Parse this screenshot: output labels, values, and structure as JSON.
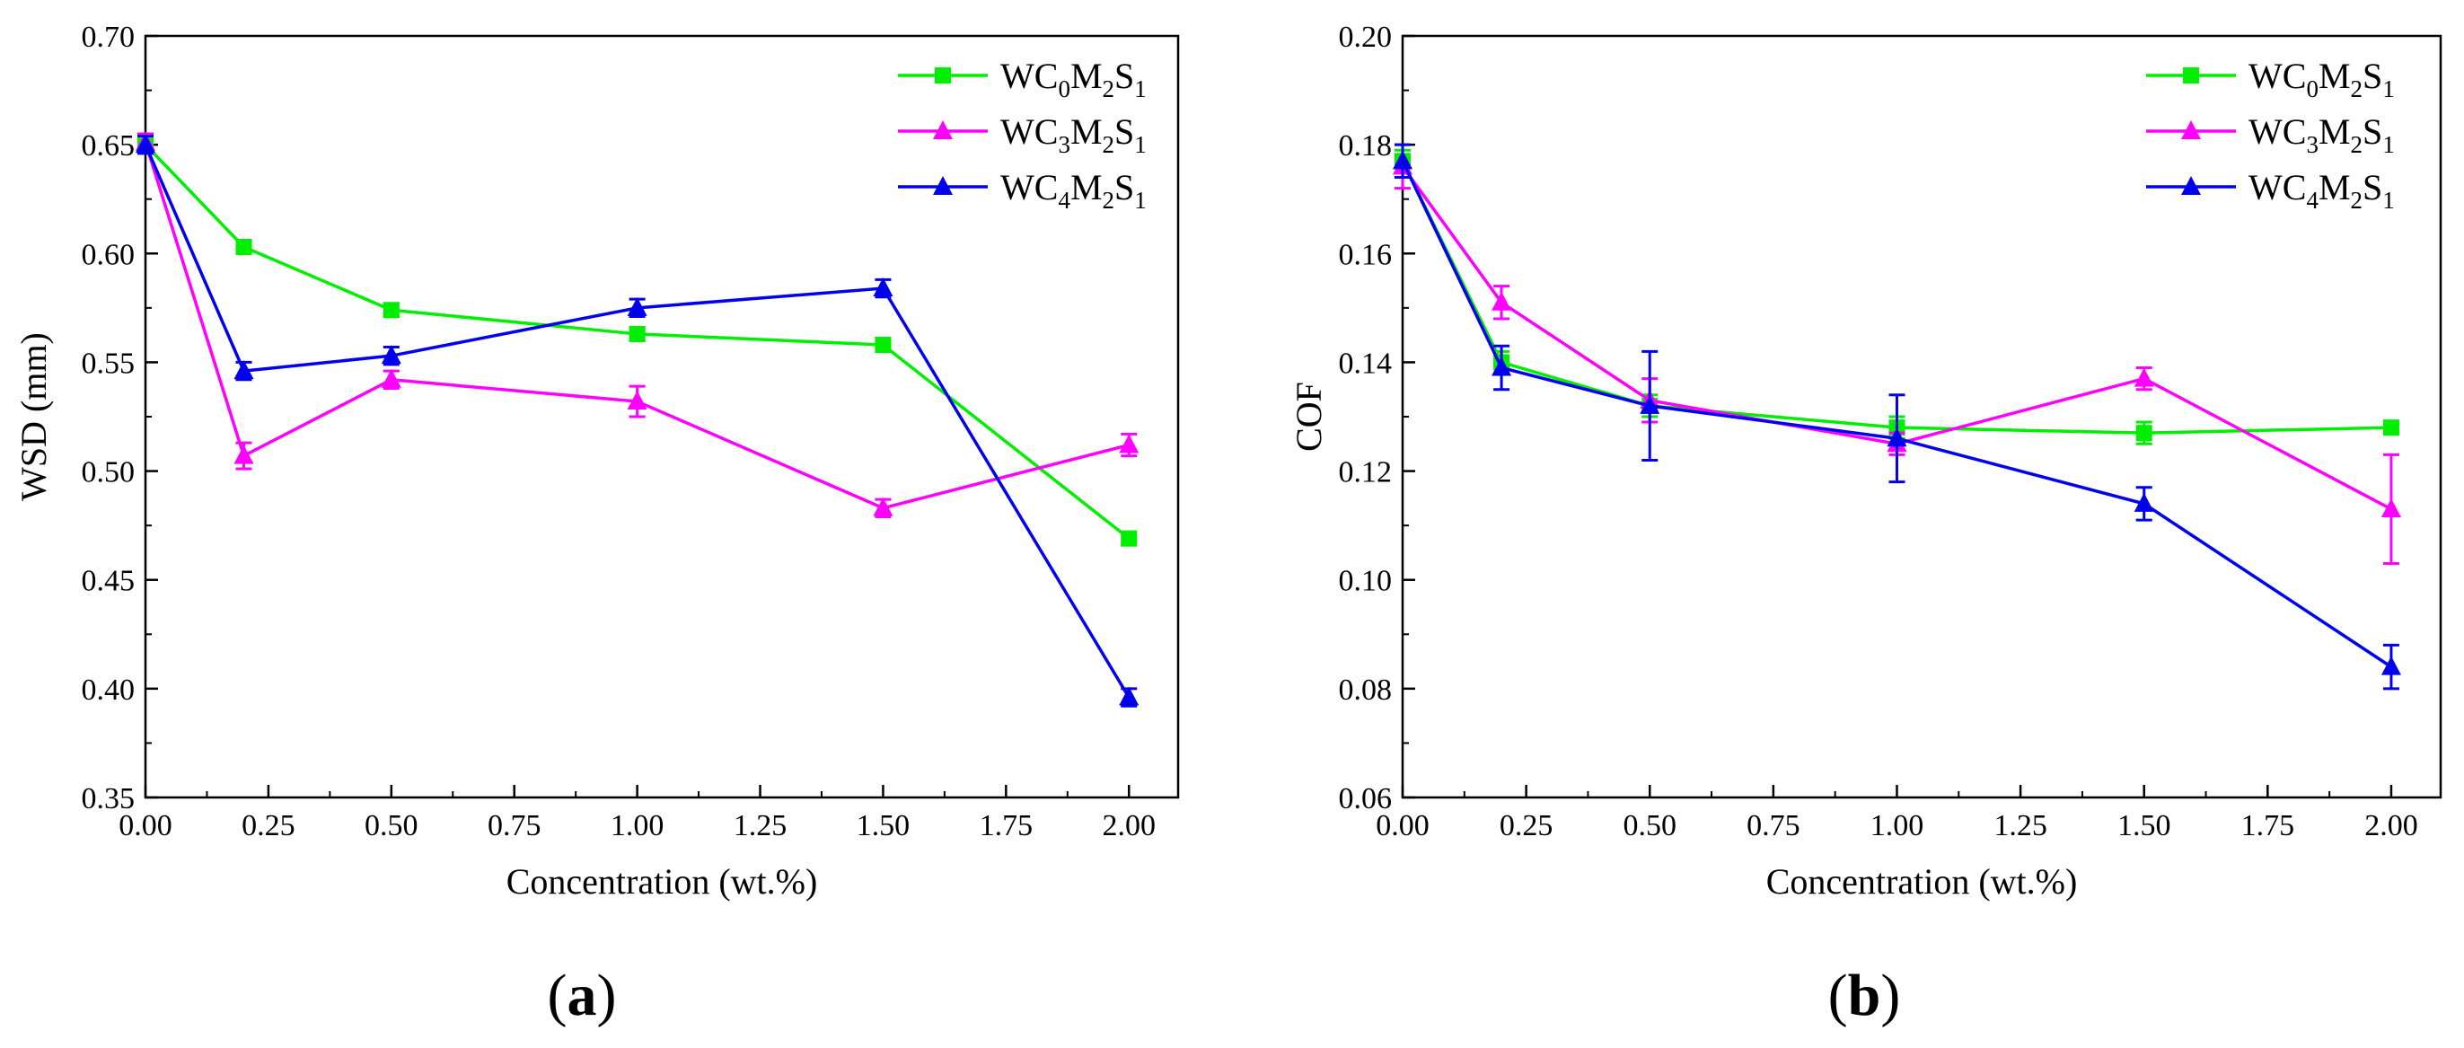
{
  "chart_data": [
    {
      "panel": "(a)",
      "panel_letter": "a",
      "type": "line",
      "title": "",
      "xlabel": "Concentration (wt.%)",
      "ylabel": "WSD (mm)",
      "xlim": [
        0,
        2.1
      ],
      "ylim": [
        0.35,
        0.7
      ],
      "xticks": [
        0.0,
        0.25,
        0.5,
        0.75,
        1.0,
        1.25,
        1.5,
        1.75,
        2.0
      ],
      "xtick_labels": [
        "0.00",
        "0.25",
        "0.50",
        "0.75",
        "1.00",
        "1.25",
        "1.50",
        "1.75",
        "2.00"
      ],
      "yticks": [
        0.35,
        0.4,
        0.45,
        0.5,
        0.55,
        0.6,
        0.65,
        0.7
      ],
      "ytick_labels": [
        "0.35",
        "0.40",
        "0.45",
        "0.50",
        "0.55",
        "0.60",
        "0.65",
        "0.70"
      ],
      "legend_position": "top-right",
      "x": [
        0,
        0.2,
        0.5,
        1.0,
        1.5,
        2.0
      ],
      "series": [
        {
          "name": "WC0M2S1",
          "label_parts": [
            "WC",
            "0",
            "M",
            "2",
            "S",
            "1"
          ],
          "color": "#00ee00",
          "marker": "square",
          "values": [
            0.65,
            0.603,
            0.574,
            0.563,
            0.558,
            0.469
          ],
          "errors": [
            0.003,
            0.003,
            0.003,
            0.003,
            0.003,
            0.003
          ]
        },
        {
          "name": "WC3M2S1",
          "label_parts": [
            "WC",
            "3",
            "M",
            "2",
            "S",
            "1"
          ],
          "color": "#ff00ff",
          "marker": "triangle",
          "values": [
            0.651,
            0.507,
            0.542,
            0.532,
            0.483,
            0.512
          ],
          "errors": [
            0.004,
            0.006,
            0.004,
            0.007,
            0.004,
            0.005
          ]
        },
        {
          "name": "WC4M2S1",
          "label_parts": [
            "WC",
            "4",
            "M",
            "2",
            "S",
            "1"
          ],
          "color": "#0000ee",
          "marker": "triangle",
          "values": [
            0.65,
            0.546,
            0.553,
            0.575,
            0.584,
            0.396
          ],
          "errors": [
            0.004,
            0.004,
            0.004,
            0.004,
            0.004,
            0.004
          ]
        }
      ]
    },
    {
      "panel": "(b)",
      "panel_letter": "b",
      "type": "line",
      "title": "",
      "xlabel": "Concentration (wt.%)",
      "ylabel": "COF",
      "xlim": [
        0,
        2.1
      ],
      "ylim": [
        0.06,
        0.2
      ],
      "xticks": [
        0.0,
        0.25,
        0.5,
        0.75,
        1.0,
        1.25,
        1.5,
        1.75,
        2.0
      ],
      "xtick_labels": [
        "0.00",
        "0.25",
        "0.50",
        "0.75",
        "1.00",
        "1.25",
        "1.50",
        "1.75",
        "2.00"
      ],
      "yticks": [
        0.06,
        0.08,
        0.1,
        0.12,
        0.14,
        0.16,
        0.18,
        0.2
      ],
      "ytick_labels": [
        "0.06",
        "0.08",
        "0.10",
        "0.12",
        "0.14",
        "0.16",
        "0.18",
        "0.20"
      ],
      "legend_position": "top-right",
      "x": [
        0,
        0.2,
        0.5,
        1.0,
        1.5,
        2.0
      ],
      "series": [
        {
          "name": "WC0M2S1",
          "label_parts": [
            "WC",
            "0",
            "M",
            "2",
            "S",
            "1"
          ],
          "color": "#00ee00",
          "marker": "square",
          "values": [
            0.177,
            0.14,
            0.132,
            0.128,
            0.127,
            0.128
          ],
          "errors": [
            0.002,
            0.002,
            0.002,
            0.002,
            0.002,
            0.001
          ]
        },
        {
          "name": "WC3M2S1",
          "label_parts": [
            "WC",
            "3",
            "M",
            "2",
            "S",
            "1"
          ],
          "color": "#ff00ff",
          "marker": "triangle",
          "values": [
            0.176,
            0.151,
            0.133,
            0.125,
            0.137,
            0.113
          ],
          "errors": [
            0.004,
            0.003,
            0.004,
            0.002,
            0.002,
            0.01
          ]
        },
        {
          "name": "WC4M2S1",
          "label_parts": [
            "WC",
            "4",
            "M",
            "2",
            "S",
            "1"
          ],
          "color": "#0000ee",
          "marker": "triangle",
          "values": [
            0.177,
            0.139,
            0.132,
            0.126,
            0.114,
            0.084
          ],
          "errors": [
            0.003,
            0.004,
            0.01,
            0.008,
            0.003,
            0.004
          ]
        }
      ]
    }
  ]
}
